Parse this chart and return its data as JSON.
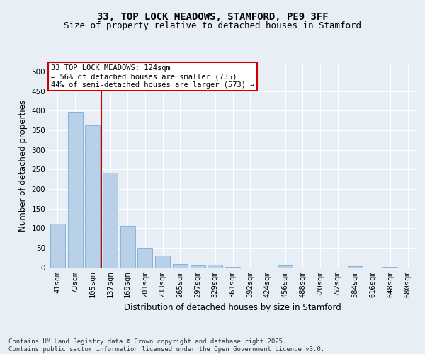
{
  "title": "33, TOP LOCK MEADOWS, STAMFORD, PE9 3FF",
  "subtitle": "Size of property relative to detached houses in Stamford",
  "xlabel": "Distribution of detached houses by size in Stamford",
  "ylabel": "Number of detached properties",
  "categories": [
    "41sqm",
    "73sqm",
    "105sqm",
    "137sqm",
    "169sqm",
    "201sqm",
    "233sqm",
    "265sqm",
    "297sqm",
    "329sqm",
    "361sqm",
    "392sqm",
    "424sqm",
    "456sqm",
    "488sqm",
    "520sqm",
    "552sqm",
    "584sqm",
    "616sqm",
    "648sqm",
    "680sqm"
  ],
  "values": [
    112,
    397,
    363,
    242,
    106,
    50,
    30,
    9,
    4,
    6,
    1,
    0,
    0,
    5,
    0,
    0,
    0,
    2,
    0,
    1,
    0
  ],
  "bar_color": "#b8d0e8",
  "bar_edge_color": "#7aaed6",
  "vline_x": 2.5,
  "vline_color": "#cc0000",
  "annotation_text": "33 TOP LOCK MEADOWS: 124sqm\n← 56% of detached houses are smaller (735)\n44% of semi-detached houses are larger (573) →",
  "annotation_box_color": "#ffffff",
  "annotation_border_color": "#cc0000",
  "ylim": [
    0,
    520
  ],
  "yticks": [
    0,
    50,
    100,
    150,
    200,
    250,
    300,
    350,
    400,
    450,
    500
  ],
  "background_color": "#e8eef5",
  "plot_bg_color": "#e8eef5",
  "footer": "Contains HM Land Registry data © Crown copyright and database right 2025.\nContains public sector information licensed under the Open Government Licence v3.0.",
  "title_fontsize": 10,
  "subtitle_fontsize": 9,
  "xlabel_fontsize": 8.5,
  "ylabel_fontsize": 8.5,
  "tick_fontsize": 7.5,
  "annotation_fontsize": 7.5,
  "footer_fontsize": 6.5
}
